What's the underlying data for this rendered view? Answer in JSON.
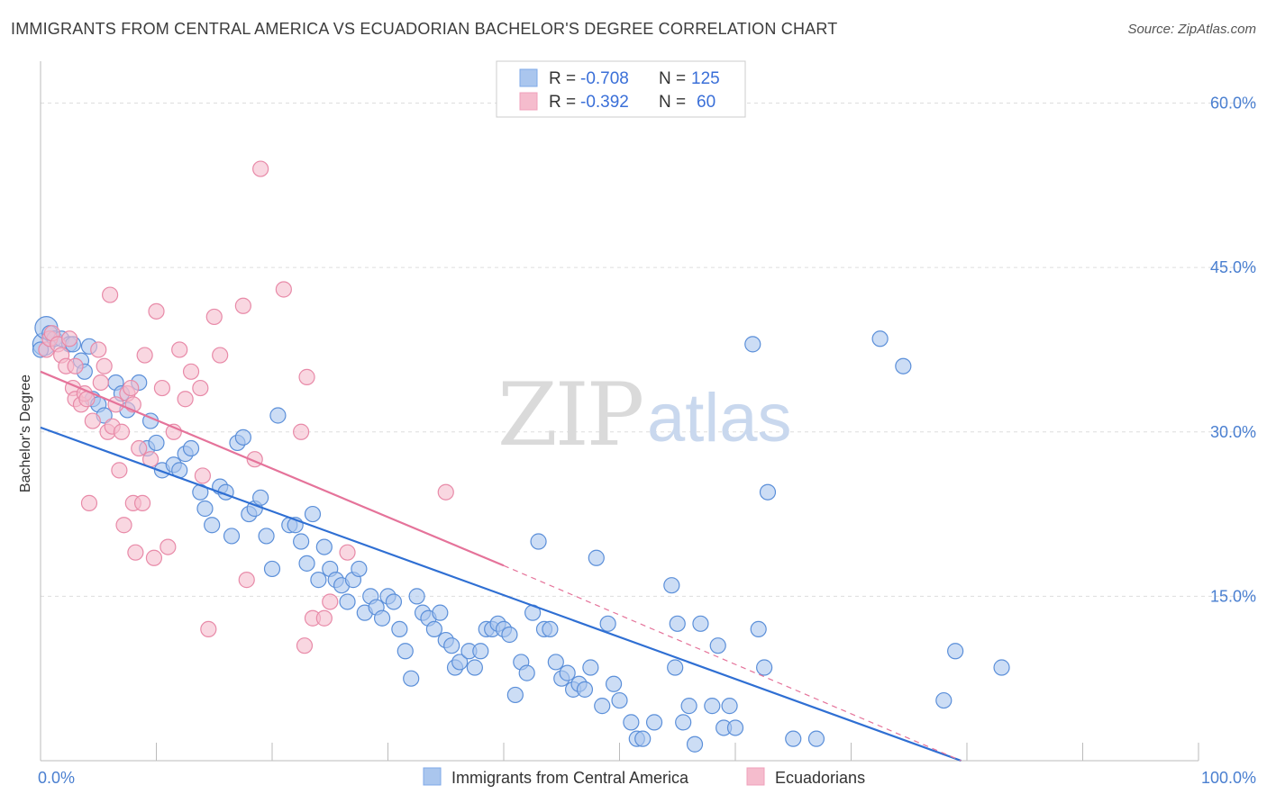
{
  "header": {
    "title": "IMMIGRANTS FROM CENTRAL AMERICA VS ECUADORIAN BACHELOR'S DEGREE CORRELATION CHART",
    "source": "Source: ZipAtlas.com"
  },
  "watermark": {
    "zip": "ZIP",
    "atlas": "atlas"
  },
  "stats": [
    {
      "r_label": "R =",
      "r_value": "-0.708",
      "n_label": "N =",
      "n_value": "125",
      "color": "#7fa9e8"
    },
    {
      "r_label": "R =",
      "r_value": "-0.392",
      "n_label": "N =",
      "n_value": "60",
      "color": "#f0a0bb"
    }
  ],
  "colors": {
    "blue_fill": "#aac6ee",
    "blue_stroke": "#5b8fd9",
    "blue_line": "#2f6fd3",
    "pink_fill": "#f5bccd",
    "pink_stroke": "#e88aa8",
    "pink_line": "#e5739a",
    "grid": "#dddddd",
    "tick_text": "#4a7fd0"
  },
  "chart_data": {
    "type": "scatter",
    "xlabel": "",
    "ylabel": "Bachelor's Degree",
    "xlim": [
      0,
      100
    ],
    "ylim": [
      0,
      63
    ],
    "x_tick_labels": [
      {
        "value": 0,
        "label": "0.0%"
      },
      {
        "value": 100,
        "label": "100.0%"
      }
    ],
    "y_tick_labels": [
      {
        "value": 15,
        "label": "15.0%"
      },
      {
        "value": 30,
        "label": "30.0%"
      },
      {
        "value": 45,
        "label": "45.0%"
      },
      {
        "value": 60,
        "label": "60.0%"
      }
    ],
    "x_minor_ticks": [
      10,
      20,
      30,
      40,
      50,
      60,
      70,
      80,
      90
    ],
    "grid": true,
    "legend_position": "bottom-center",
    "series": [
      {
        "name": "Immigrants from Central America",
        "color": "#5b8fd9",
        "trend": {
          "x": [
            0,
            79.5
          ],
          "y": [
            30.4,
            0
          ]
        },
        "points": [
          [
            0.3,
            38.0
          ],
          [
            0.5,
            39.5
          ],
          [
            0.8,
            39.0
          ],
          [
            1.2,
            38.5
          ],
          [
            1.8,
            38.5
          ],
          [
            2.5,
            38.0
          ],
          [
            2.8,
            38.0
          ],
          [
            3.5,
            36.5
          ],
          [
            4.2,
            37.8
          ],
          [
            3.8,
            35.5
          ],
          [
            4.5,
            33.0
          ],
          [
            5.0,
            32.5
          ],
          [
            5.5,
            31.5
          ],
          [
            6.5,
            34.5
          ],
          [
            7.0,
            33.5
          ],
          [
            7.5,
            32.0
          ],
          [
            8.5,
            34.5
          ],
          [
            9.5,
            31.0
          ],
          [
            9.2,
            28.5
          ],
          [
            10.0,
            29.0
          ],
          [
            10.5,
            26.5
          ],
          [
            11.5,
            27.0
          ],
          [
            12.0,
            26.5
          ],
          [
            12.5,
            28.0
          ],
          [
            13.0,
            28.5
          ],
          [
            13.8,
            24.5
          ],
          [
            14.2,
            23.0
          ],
          [
            14.8,
            21.5
          ],
          [
            15.5,
            25.0
          ],
          [
            16.0,
            24.5
          ],
          [
            16.5,
            20.5
          ],
          [
            17.0,
            29.0
          ],
          [
            17.5,
            29.5
          ],
          [
            18.0,
            22.5
          ],
          [
            18.5,
            23.0
          ],
          [
            19.0,
            24.0
          ],
          [
            19.5,
            20.5
          ],
          [
            20.0,
            17.5
          ],
          [
            20.5,
            31.5
          ],
          [
            21.5,
            21.5
          ],
          [
            22.0,
            21.5
          ],
          [
            22.5,
            20.0
          ],
          [
            23.0,
            18.0
          ],
          [
            23.5,
            22.5
          ],
          [
            24.0,
            16.5
          ],
          [
            24.5,
            19.5
          ],
          [
            25.0,
            17.5
          ],
          [
            25.5,
            16.5
          ],
          [
            26.0,
            16.0
          ],
          [
            26.5,
            14.5
          ],
          [
            27.0,
            16.5
          ],
          [
            27.5,
            17.5
          ],
          [
            28.0,
            13.5
          ],
          [
            28.5,
            15.0
          ],
          [
            29.0,
            14.0
          ],
          [
            29.5,
            13.0
          ],
          [
            30.0,
            15.0
          ],
          [
            30.5,
            14.5
          ],
          [
            31.0,
            12.0
          ],
          [
            31.5,
            10.0
          ],
          [
            32.0,
            7.5
          ],
          [
            32.5,
            15.0
          ],
          [
            33.0,
            13.5
          ],
          [
            33.5,
            13.0
          ],
          [
            34.0,
            12.0
          ],
          [
            34.5,
            13.5
          ],
          [
            35.0,
            11.0
          ],
          [
            35.5,
            10.5
          ],
          [
            35.8,
            8.5
          ],
          [
            36.2,
            9.0
          ],
          [
            37.0,
            10.0
          ],
          [
            37.5,
            8.5
          ],
          [
            38.0,
            10.0
          ],
          [
            38.5,
            12.0
          ],
          [
            39.0,
            12.0
          ],
          [
            39.5,
            12.5
          ],
          [
            40.0,
            12.0
          ],
          [
            40.5,
            11.5
          ],
          [
            41.0,
            6.0
          ],
          [
            41.5,
            9.0
          ],
          [
            42.0,
            8.0
          ],
          [
            42.5,
            13.5
          ],
          [
            43.0,
            20.0
          ],
          [
            43.5,
            12.0
          ],
          [
            44.0,
            12.0
          ],
          [
            44.5,
            9.0
          ],
          [
            45.0,
            7.5
          ],
          [
            45.5,
            8.0
          ],
          [
            46.0,
            6.5
          ],
          [
            46.5,
            7.0
          ],
          [
            47.0,
            6.5
          ],
          [
            47.5,
            8.5
          ],
          [
            48.0,
            18.5
          ],
          [
            48.5,
            5.0
          ],
          [
            49.0,
            12.5
          ],
          [
            49.5,
            7.0
          ],
          [
            50.0,
            5.5
          ],
          [
            51.0,
            3.5
          ],
          [
            51.5,
            2.0
          ],
          [
            52.0,
            2.0
          ],
          [
            53.0,
            3.5
          ],
          [
            54.5,
            16.0
          ],
          [
            54.8,
            8.5
          ],
          [
            55.0,
            12.5
          ],
          [
            55.5,
            3.5
          ],
          [
            56.0,
            5.0
          ],
          [
            56.5,
            1.5
          ],
          [
            57.0,
            12.5
          ],
          [
            58.0,
            5.0
          ],
          [
            58.5,
            10.5
          ],
          [
            59.0,
            3.0
          ],
          [
            59.5,
            5.0
          ],
          [
            60.0,
            3.0
          ],
          [
            61.5,
            38.0
          ],
          [
            62.0,
            12.0
          ],
          [
            62.5,
            8.5
          ],
          [
            62.8,
            24.5
          ],
          [
            65.0,
            2.0
          ],
          [
            67.0,
            2.0
          ],
          [
            72.5,
            38.5
          ],
          [
            74.5,
            36.0
          ],
          [
            78.0,
            5.5
          ],
          [
            79.0,
            10.0
          ],
          [
            83.0,
            8.5
          ],
          [
            0.0,
            37.5
          ]
        ]
      },
      {
        "name": "Ecuadorians",
        "color": "#e88aa8",
        "trend": {
          "x": [
            0,
            40
          ],
          "y": [
            35.5,
            17.8
          ]
        },
        "trend_dashed": {
          "x": [
            40,
            79.5
          ],
          "y": [
            17.8,
            0
          ]
        },
        "points": [
          [
            0.5,
            37.5
          ],
          [
            0.8,
            38.5
          ],
          [
            1.0,
            39.0
          ],
          [
            1.5,
            38.0
          ],
          [
            1.8,
            37.0
          ],
          [
            2.2,
            36.0
          ],
          [
            2.5,
            38.5
          ],
          [
            2.8,
            34.0
          ],
          [
            3.0,
            33.0
          ],
          [
            3.5,
            32.5
          ],
          [
            3.8,
            33.5
          ],
          [
            4.0,
            33.0
          ],
          [
            4.2,
            23.5
          ],
          [
            4.5,
            31.0
          ],
          [
            5.0,
            37.5
          ],
          [
            5.2,
            34.5
          ],
          [
            5.5,
            36.0
          ],
          [
            5.8,
            30.0
          ],
          [
            6.0,
            42.5
          ],
          [
            6.2,
            30.5
          ],
          [
            6.5,
            32.5
          ],
          [
            6.8,
            26.5
          ],
          [
            7.0,
            30.0
          ],
          [
            7.2,
            21.5
          ],
          [
            7.5,
            33.5
          ],
          [
            7.8,
            34.0
          ],
          [
            8.0,
            23.5
          ],
          [
            8.2,
            19.0
          ],
          [
            8.5,
            28.5
          ],
          [
            8.8,
            23.5
          ],
          [
            9.0,
            37.0
          ],
          [
            9.5,
            27.5
          ],
          [
            9.8,
            18.5
          ],
          [
            10.0,
            41.0
          ],
          [
            10.5,
            34.0
          ],
          [
            11.0,
            19.5
          ],
          [
            11.5,
            30.0
          ],
          [
            12.0,
            37.5
          ],
          [
            12.5,
            33.0
          ],
          [
            13.0,
            35.5
          ],
          [
            13.8,
            34.0
          ],
          [
            14.0,
            26.0
          ],
          [
            14.5,
            12.0
          ],
          [
            15.0,
            40.5
          ],
          [
            15.5,
            37.0
          ],
          [
            17.5,
            41.5
          ],
          [
            17.8,
            16.5
          ],
          [
            18.5,
            27.5
          ],
          [
            19.0,
            54.0
          ],
          [
            21.0,
            43.0
          ],
          [
            22.5,
            30.0
          ],
          [
            22.8,
            10.5
          ],
          [
            23.0,
            35.0
          ],
          [
            23.5,
            13.0
          ],
          [
            24.5,
            13.0
          ],
          [
            25.0,
            14.5
          ],
          [
            26.5,
            19.0
          ],
          [
            35.0,
            24.5
          ],
          [
            3.0,
            36.0
          ],
          [
            8.0,
            32.5
          ]
        ]
      }
    ]
  }
}
